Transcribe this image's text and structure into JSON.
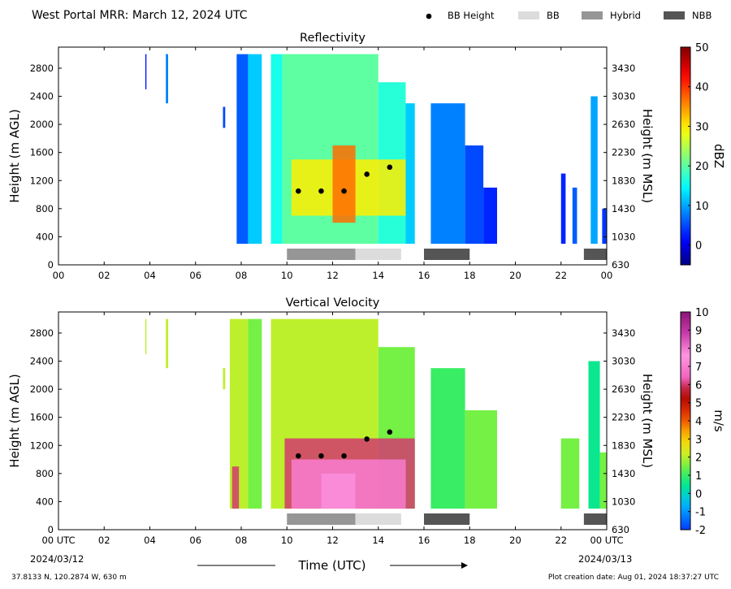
{
  "header": {
    "title": "West Portal MRR:  March 12, 2024 UTC",
    "legend": [
      {
        "label": "BB Height",
        "marker": "dot",
        "color": "#000000"
      },
      {
        "label": "BB",
        "marker": "box",
        "color": "#dcdcdc"
      },
      {
        "label": "Hybrid",
        "marker": "box",
        "color": "#969696"
      },
      {
        "label": "NBB",
        "marker": "box",
        "color": "#555555"
      }
    ]
  },
  "footer": {
    "xlabel": "Time (UTC)",
    "location": "37.8133 N, 120.2874 W, 630 m",
    "created": "Plot creation date: Aug 01, 2024 18:37:27 UTC",
    "start_date": "2024/03/12",
    "end_date": "2024/03/13"
  },
  "chart_data": [
    {
      "type": "heatmap",
      "title": "Reflectivity",
      "ylabel": "Height (m AGL)",
      "ylabel_right": "Height (m MSL)",
      "colorbar_label": "dBZ",
      "colormap": "jet",
      "clim": [
        -5,
        50
      ],
      "colorbar_ticks": [
        "50",
        "40",
        "30",
        "20",
        "10",
        "0"
      ],
      "colorbar_tick_values": [
        50,
        40,
        30,
        20,
        10,
        0
      ],
      "xlim": [
        0,
        24
      ],
      "ylim": [
        0,
        3100
      ],
      "x_ticks": [
        "00",
        "02",
        "04",
        "06",
        "08",
        "10",
        "12",
        "14",
        "16",
        "18",
        "20",
        "22",
        "00"
      ],
      "y_ticks": [
        "0",
        "400",
        "800",
        "1200",
        "1600",
        "2000",
        "2400",
        "2800"
      ],
      "y_right_ticks": [
        "630",
        "1030",
        "1430",
        "1830",
        "2230",
        "2630",
        "3030",
        "3430"
      ],
      "bb_height": [
        {
          "x": 10.5,
          "y": 1050
        },
        {
          "x": 11.5,
          "y": 1050
        },
        {
          "x": 12.5,
          "y": 1050
        },
        {
          "x": 13.5,
          "y": 1290
        },
        {
          "x": 14.5,
          "y": 1390
        }
      ],
      "bb_types": [
        {
          "type": "Hybrid",
          "start": 10.0,
          "end": 13.0
        },
        {
          "type": "BB",
          "start": 13.0,
          "end": 15.0
        },
        {
          "type": "NBB",
          "start": 16.0,
          "end": 18.0
        },
        {
          "type": "NBB",
          "start": 23.0,
          "end": 24.0
        }
      ],
      "echo_regions": [
        {
          "start": 3.8,
          "end": 3.85,
          "bottom": 2500,
          "top": 3000,
          "value": 2
        },
        {
          "start": 4.7,
          "end": 4.8,
          "bottom": 2300,
          "top": 3000,
          "value": 8
        },
        {
          "start": 7.2,
          "end": 7.3,
          "bottom": 1950,
          "top": 2250,
          "value": 5
        },
        {
          "start": 7.8,
          "end": 8.3,
          "bottom": 300,
          "top": 3000,
          "value": 6
        },
        {
          "start": 8.3,
          "end": 8.9,
          "bottom": 300,
          "top": 3000,
          "value": 12
        },
        {
          "start": 9.3,
          "end": 9.8,
          "bottom": 300,
          "top": 3000,
          "value": 16
        },
        {
          "start": 9.8,
          "end": 14.0,
          "bottom": 300,
          "top": 3000,
          "value": 20
        },
        {
          "start": 14.0,
          "end": 15.2,
          "bottom": 300,
          "top": 2600,
          "value": 17
        },
        {
          "start": 15.2,
          "end": 15.6,
          "bottom": 300,
          "top": 2300,
          "value": 12
        },
        {
          "start": 16.3,
          "end": 17.8,
          "bottom": 300,
          "top": 2300,
          "value": 8
        },
        {
          "start": 17.8,
          "end": 18.6,
          "bottom": 300,
          "top": 1700,
          "value": 5
        },
        {
          "start": 18.6,
          "end": 19.2,
          "bottom": 300,
          "top": 1100,
          "value": 3
        },
        {
          "start": 22.0,
          "end": 22.2,
          "bottom": 300,
          "top": 1300,
          "value": 3
        },
        {
          "start": 22.5,
          "end": 22.7,
          "bottom": 300,
          "top": 1100,
          "value": 6
        },
        {
          "start": 23.3,
          "end": 23.6,
          "bottom": 300,
          "top": 2400,
          "value": 10
        },
        {
          "start": 23.8,
          "end": 24.0,
          "bottom": 300,
          "top": 800,
          "value": 4
        }
      ],
      "bright_band": [
        {
          "start": 10.2,
          "end": 15.2,
          "bottom": 700,
          "top": 1500,
          "value": 30
        },
        {
          "start": 12.0,
          "end": 13.0,
          "bottom": 600,
          "top": 1700,
          "value": 37
        }
      ]
    },
    {
      "type": "heatmap",
      "title": "Vertical Velocity",
      "ylabel": "Height (m AGL)",
      "ylabel_right": "Height (m MSL)",
      "colorbar_label": "m/s",
      "colormap": "velocity",
      "clim": [
        -2,
        10
      ],
      "colorbar_ticks": [
        "10",
        "9",
        "8",
        "7",
        "6",
        "5",
        "4",
        "3",
        "2",
        "1",
        "0",
        "-1",
        "-2"
      ],
      "colorbar_tick_values": [
        10,
        9,
        8,
        7,
        6,
        5,
        4,
        3,
        2,
        1,
        0,
        -1,
        -2
      ],
      "xlim": [
        0,
        24
      ],
      "ylim": [
        0,
        3100
      ],
      "x_ticks": [
        "00 UTC",
        "02",
        "04",
        "06",
        "08",
        "10",
        "12",
        "14",
        "16",
        "18",
        "20",
        "22",
        "00 UTC"
      ],
      "y_ticks": [
        "0",
        "400",
        "800",
        "1200",
        "1600",
        "2000",
        "2400",
        "2800"
      ],
      "y_right_ticks": [
        "630",
        "1030",
        "1430",
        "1830",
        "2230",
        "2630",
        "3030",
        "3430"
      ],
      "bb_height": [
        {
          "x": 10.5,
          "y": 1050
        },
        {
          "x": 11.5,
          "y": 1050
        },
        {
          "x": 12.5,
          "y": 1050
        },
        {
          "x": 13.5,
          "y": 1290
        },
        {
          "x": 14.5,
          "y": 1390
        }
      ],
      "bb_types": [
        {
          "type": "Hybrid",
          "start": 10.0,
          "end": 13.0
        },
        {
          "type": "BB",
          "start": 13.0,
          "end": 15.0
        },
        {
          "type": "NBB",
          "start": 16.0,
          "end": 18.0
        },
        {
          "type": "NBB",
          "start": 23.0,
          "end": 24.0
        }
      ],
      "echo_regions": [
        {
          "start": 3.8,
          "end": 3.85,
          "bottom": 2500,
          "top": 3000,
          "value": 2
        },
        {
          "start": 4.7,
          "end": 4.8,
          "bottom": 2300,
          "top": 3000,
          "value": 2
        },
        {
          "start": 7.2,
          "end": 7.3,
          "bottom": 2000,
          "top": 2300,
          "value": 2
        },
        {
          "start": 7.5,
          "end": 8.3,
          "bottom": 300,
          "top": 3000,
          "value": 2
        },
        {
          "start": 8.3,
          "end": 8.9,
          "bottom": 300,
          "top": 3000,
          "value": 1.5
        },
        {
          "start": 9.3,
          "end": 14.0,
          "bottom": 300,
          "top": 3000,
          "value": 2
        },
        {
          "start": 14.0,
          "end": 15.6,
          "bottom": 300,
          "top": 2600,
          "value": 1.5
        },
        {
          "start": 16.3,
          "end": 17.8,
          "bottom": 300,
          "top": 2300,
          "value": 1
        },
        {
          "start": 17.8,
          "end": 19.2,
          "bottom": 300,
          "top": 1700,
          "value": 1.5
        },
        {
          "start": 22.0,
          "end": 22.8,
          "bottom": 300,
          "top": 1300,
          "value": 1.5
        },
        {
          "start": 23.2,
          "end": 23.7,
          "bottom": 300,
          "top": 2400,
          "value": 0.5
        },
        {
          "start": 23.7,
          "end": 24.0,
          "bottom": 300,
          "top": 1100,
          "value": 1.5
        }
      ],
      "bright_band": [
        {
          "start": 9.9,
          "end": 15.6,
          "bottom": 300,
          "top": 1300,
          "value": 6
        },
        {
          "start": 10.2,
          "end": 15.2,
          "bottom": 300,
          "top": 1000,
          "value": 7
        },
        {
          "start": 11.5,
          "end": 13.0,
          "bottom": 300,
          "top": 800,
          "value": 7.7
        },
        {
          "start": 7.6,
          "end": 7.9,
          "bottom": 300,
          "top": 900,
          "value": 6
        }
      ]
    }
  ]
}
